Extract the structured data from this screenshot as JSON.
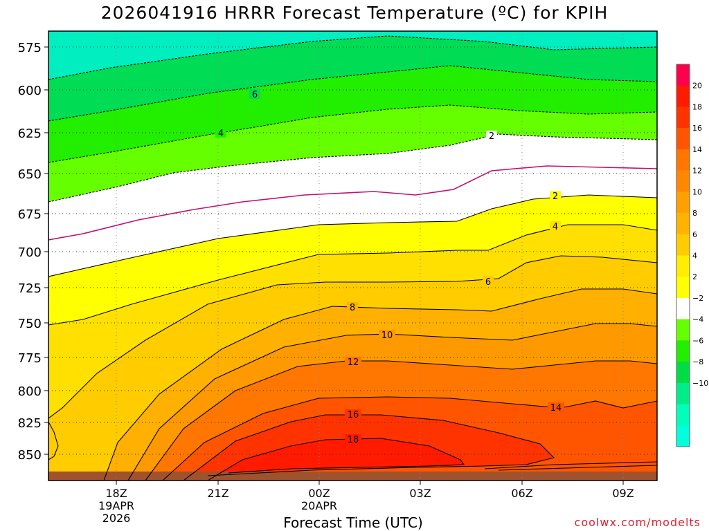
{
  "header": {
    "title": "2026041916 HRRR Forecast Temperature (ºC) for KPIH",
    "credit": "coolwx.com/modelts"
  },
  "chart_data": {
    "type": "heatmap",
    "title": "2026041916 HRRR Forecast Temperature (ºC) for KPIH",
    "xlabel": "Forecast Time (UTC)",
    "ylabel": "",
    "y_axis": {
      "reversed": true,
      "ticks": [
        575,
        600,
        625,
        650,
        675,
        700,
        725,
        750,
        775,
        800,
        825,
        850
      ]
    },
    "x_axis": {
      "ticks": [
        {
          "label": "18Z",
          "sub": [
            "19APR",
            "2026"
          ]
        },
        {
          "label": "21Z",
          "sub": []
        },
        {
          "label": "00Z",
          "sub": [
            "20APR"
          ]
        },
        {
          "label": "03Z",
          "sub": []
        },
        {
          "label": "06Z",
          "sub": []
        },
        {
          "label": "09Z",
          "sub": []
        }
      ]
    },
    "grid": true,
    "colorbar": {
      "labels": [
        "20",
        "18",
        "16",
        "14",
        "12",
        "10",
        "8",
        "6",
        "4",
        "2",
        "−2",
        "−4",
        "−6",
        "−8",
        "−10"
      ],
      "colors": [
        "#ff004c",
        "#ff1a00",
        "#ff3300",
        "#ff5500",
        "#ff7700",
        "#ff8800",
        "#ffa000",
        "#ffb300",
        "#ffcc00",
        "#ffee00",
        "#ffff00",
        "#ffffff",
        "#66ff00",
        "#22ee00",
        "#00dd44",
        "#00ee88",
        "#00ffbb",
        "#00ffdd"
      ]
    },
    "contour_labels": [
      {
        "text": "6"
      },
      {
        "text": "4"
      },
      {
        "text": "2"
      },
      {
        "text": "2"
      },
      {
        "text": "4"
      },
      {
        "text": "6"
      },
      {
        "text": "8"
      },
      {
        "text": "10"
      },
      {
        "text": "12"
      },
      {
        "text": "14"
      },
      {
        "text": "16"
      },
      {
        "text": "18"
      }
    ]
  }
}
